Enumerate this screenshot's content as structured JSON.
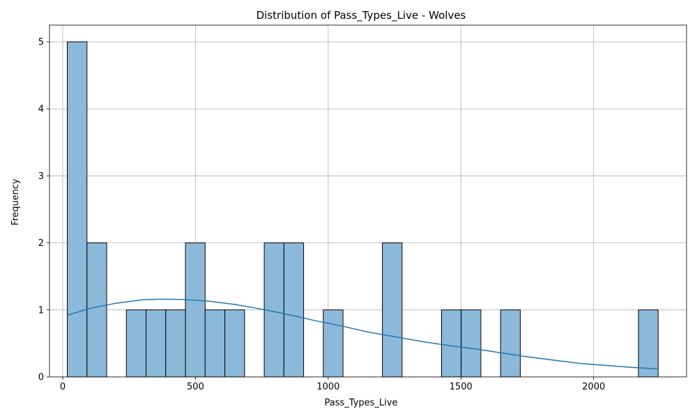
{
  "chart_data": {
    "type": "bar",
    "title": "Distribution of Pass_Types_Live - Wolves",
    "xlabel": "Pass_Types_Live",
    "ylabel": "Frequency",
    "xlim": [
      -50,
      2350
    ],
    "ylim": [
      0,
      5.25
    ],
    "xticks": [
      0,
      500,
      1000,
      1500,
      2000
    ],
    "yticks": [
      0,
      1,
      2,
      3,
      4,
      5
    ],
    "grid": true,
    "bin_start": 17,
    "bin_width": 74.2,
    "counts": [
      5,
      2,
      0,
      1,
      1,
      1,
      2,
      1,
      1,
      0,
      2,
      2,
      0,
      1,
      0,
      0,
      2,
      0,
      0,
      1,
      1,
      0,
      1,
      0,
      0,
      0,
      0,
      0,
      0,
      1
    ],
    "bar_color": "#8cb9da",
    "edge_color": "#000000",
    "kde": {
      "color": "#1f77b4",
      "x": [
        17,
        100,
        200,
        300,
        370,
        450,
        550,
        650,
        750,
        850,
        950,
        1050,
        1150,
        1250,
        1350,
        1450,
        1550,
        1650,
        1750,
        1850,
        1950,
        2050,
        2150,
        2243
      ],
      "y": [
        0.92,
        1.02,
        1.1,
        1.15,
        1.16,
        1.155,
        1.13,
        1.08,
        1.01,
        0.93,
        0.84,
        0.76,
        0.67,
        0.6,
        0.53,
        0.47,
        0.42,
        0.36,
        0.3,
        0.25,
        0.2,
        0.17,
        0.14,
        0.12
      ]
    }
  }
}
